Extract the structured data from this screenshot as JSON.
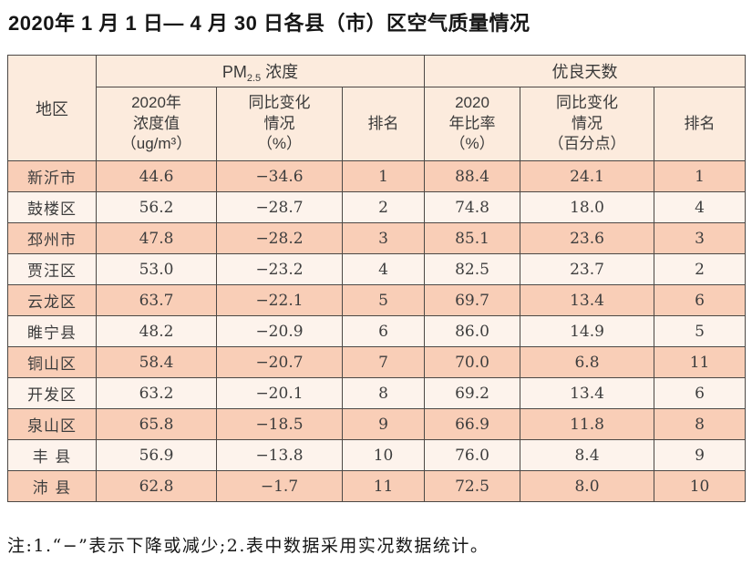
{
  "title": "2020年 1 月 1 日— 4 月 30 日各县（市）区空气质量情况",
  "note": "注:1.“−”表示下降或减少;2.表中数据采用实况数据统计。",
  "colors": {
    "header_bg": "#fcebdd",
    "row_dark": "#f9ceb7",
    "row_light": "#fdf3ec",
    "border": "#4c4845",
    "text": "#3d3d3d"
  },
  "table": {
    "headers": {
      "region": "地区",
      "pm_group": {
        "prefix": "PM",
        "sub": "2.5",
        "suffix": "浓度"
      },
      "days_group": "优良天数",
      "pm_value": "2020年\n浓度值\n（ug/m³）",
      "pm_change": "同比变化\n情况\n（%）",
      "pm_rank": "排名",
      "days_ratio": "2020\n年比率\n（%）",
      "days_change": "同比变化\n情况\n（百分点）",
      "days_rank": "排名"
    },
    "rows": [
      {
        "region": "新沂市",
        "pm_value": "44.6",
        "pm_change": "−34.6",
        "pm_rank": "1",
        "ratio": "88.4",
        "ratio_change": "24.1",
        "days_rank": "1"
      },
      {
        "region": "鼓楼区",
        "pm_value": "56.2",
        "pm_change": "−28.7",
        "pm_rank": "2",
        "ratio": "74.8",
        "ratio_change": "18.0",
        "days_rank": "4"
      },
      {
        "region": "邳州市",
        "pm_value": "47.8",
        "pm_change": "−28.2",
        "pm_rank": "3",
        "ratio": "85.1",
        "ratio_change": "23.6",
        "days_rank": "3"
      },
      {
        "region": "贾汪区",
        "pm_value": "53.0",
        "pm_change": "−23.2",
        "pm_rank": "4",
        "ratio": "82.5",
        "ratio_change": "23.7",
        "days_rank": "2"
      },
      {
        "region": "云龙区",
        "pm_value": "63.7",
        "pm_change": "−22.1",
        "pm_rank": "5",
        "ratio": "69.7",
        "ratio_change": "13.4",
        "days_rank": "6"
      },
      {
        "region": "睢宁县",
        "pm_value": "48.2",
        "pm_change": "−20.9",
        "pm_rank": "6",
        "ratio": "86.0",
        "ratio_change": "14.9",
        "days_rank": "5"
      },
      {
        "region": "铜山区",
        "pm_value": "58.4",
        "pm_change": "−20.7",
        "pm_rank": "7",
        "ratio": "70.0",
        "ratio_change": "6.8",
        "days_rank": "11"
      },
      {
        "region": "开发区",
        "pm_value": "63.2",
        "pm_change": "−20.1",
        "pm_rank": "8",
        "ratio": "69.2",
        "ratio_change": "13.4",
        "days_rank": "6"
      },
      {
        "region": "泉山区",
        "pm_value": "65.8",
        "pm_change": "−18.5",
        "pm_rank": "9",
        "ratio": "66.9",
        "ratio_change": "11.8",
        "days_rank": "8"
      },
      {
        "region": "丰 县",
        "pm_value": "56.9",
        "pm_change": "−13.8",
        "pm_rank": "10",
        "ratio": "76.0",
        "ratio_change": "8.4",
        "days_rank": "9"
      },
      {
        "region": "沛 县",
        "pm_value": "62.8",
        "pm_change": "−1.7",
        "pm_rank": "11",
        "ratio": "72.5",
        "ratio_change": "8.0",
        "days_rank": "10"
      }
    ]
  }
}
